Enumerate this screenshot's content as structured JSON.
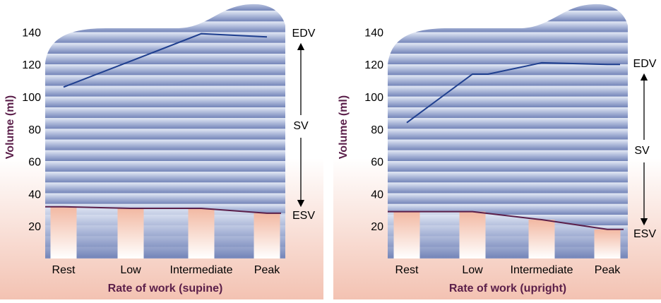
{
  "chart_data": [
    {
      "type": "line",
      "categories": [
        "Rest",
        "Low",
        "Intermediate",
        "Peak"
      ],
      "series": [
        {
          "name": "EDV",
          "values": [
            106,
            122,
            139,
            137
          ]
        },
        {
          "name": "ESV",
          "values": [
            32,
            31,
            31,
            28
          ]
        }
      ],
      "xlabel": "Rate of work (supine)",
      "ylabel": "Volume (ml)",
      "yticks": [
        20,
        40,
        60,
        80,
        100,
        120,
        140
      ],
      "ylim": [
        0,
        150
      ],
      "annotations": {
        "edv": "EDV",
        "sv": "SV",
        "esv": "ESV"
      },
      "grid": "horizontal bands"
    },
    {
      "type": "line",
      "categories": [
        "Rest",
        "Low",
        "Intermediate",
        "Peak"
      ],
      "series": [
        {
          "name": "EDV",
          "values": [
            84,
            114,
            121,
            120
          ]
        },
        {
          "name": "ESV",
          "values": [
            29,
            29,
            24,
            18
          ]
        }
      ],
      "xlabel": "Rate of work (upright)",
      "ylabel": "Volume (ml)",
      "yticks": [
        20,
        40,
        60,
        80,
        100,
        120,
        140
      ],
      "ylim": [
        0,
        150
      ],
      "annotations": {
        "edv": "EDV",
        "sv": "SV",
        "esv": "ESV"
      },
      "grid": "horizontal bands"
    }
  ],
  "colors": {
    "edv_line": "#1f3f8f",
    "esv_line": "#5b1f4a",
    "axis_title": "#5b1f4a",
    "band_light": "#dfe6f3",
    "band_dark": "#7f90c0",
    "bg_top": "#ffffff",
    "bg_bottom": "#f3c2b2"
  }
}
